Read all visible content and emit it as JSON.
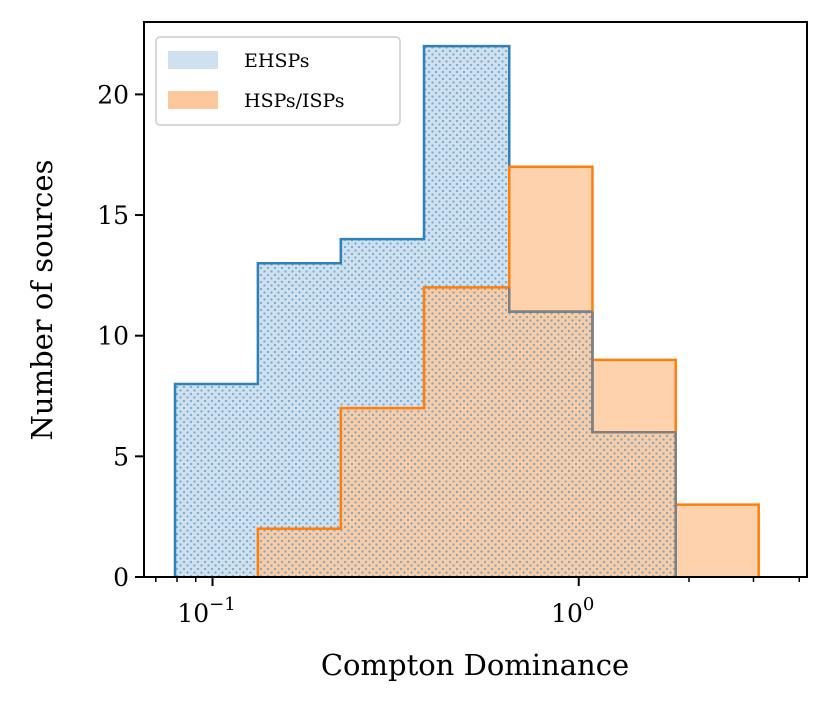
{
  "chart_data": {
    "type": "bar",
    "subtype": "step-filled histogram",
    "xscale": "log",
    "xlabel": "Compton Dominance",
    "ylabel": "Number of sources",
    "xlim": [
      0.065,
      4.2
    ],
    "ylim": [
      0,
      23
    ],
    "xticks_major": [
      {
        "value": 0.1,
        "base": "10",
        "exp": "−1"
      },
      {
        "value": 1.0,
        "base": "10",
        "exp": "0"
      }
    ],
    "xticks_minor": [
      0.07,
      0.08,
      0.09,
      2,
      3,
      4
    ],
    "yticks": [
      {
        "value": 0,
        "label": "0"
      },
      {
        "value": 5,
        "label": "5"
      },
      {
        "value": 10,
        "label": "10"
      },
      {
        "value": 15,
        "label": "15"
      },
      {
        "value": 20,
        "label": "20"
      }
    ],
    "grid": false,
    "legend_position": "top-left",
    "series": [
      {
        "name": "EHSPs",
        "fill_color": "#cfe0ee",
        "edge_color": "#2f80b9",
        "hatch": "dots",
        "bins": [
          {
            "x0": 0.079,
            "x1": 0.133,
            "value": 8
          },
          {
            "x0": 0.133,
            "x1": 0.224,
            "value": 13
          },
          {
            "x0": 0.224,
            "x1": 0.378,
            "value": 14
          },
          {
            "x0": 0.378,
            "x1": 0.646,
            "value": 22
          },
          {
            "x0": 0.646,
            "x1": 1.09,
            "value": 11
          },
          {
            "x0": 1.09,
            "x1": 1.84,
            "value": 6
          }
        ]
      },
      {
        "name": "HSPs/ISPs",
        "fill_color": "#fdc89b",
        "edge_color": "#ff7f0e",
        "hatch": "none",
        "bins": [
          {
            "x0": 0.133,
            "x1": 0.224,
            "value": 2
          },
          {
            "x0": 0.224,
            "x1": 0.378,
            "value": 7
          },
          {
            "x0": 0.378,
            "x1": 0.646,
            "value": 12
          },
          {
            "x0": 0.646,
            "x1": 1.09,
            "value": 17
          },
          {
            "x0": 1.09,
            "x1": 1.84,
            "value": 9
          },
          {
            "x0": 1.84,
            "x1": 3.1,
            "value": 3
          }
        ]
      }
    ]
  }
}
